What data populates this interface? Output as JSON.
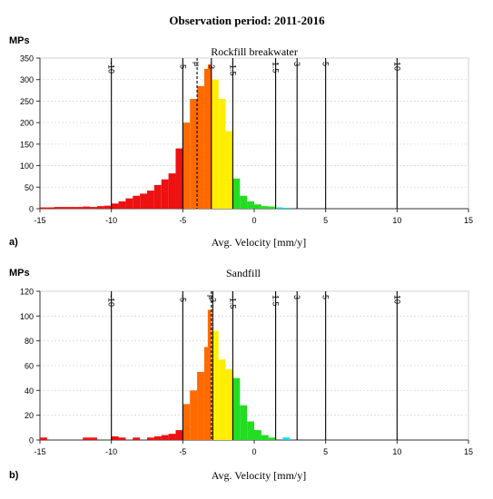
{
  "figure_title": "Observation period: 2011-2016",
  "chart_data": [
    {
      "type": "bar",
      "panel_label": "a)",
      "title": "Rockfill breakwater",
      "ylabel": "MPs",
      "xlabel": "Avg. Velocity [mm/y]",
      "xlim": [
        -15,
        15
      ],
      "ylim": [
        0,
        350
      ],
      "yticks": [
        0,
        50,
        100,
        150,
        200,
        250,
        300,
        350
      ],
      "xticks": [
        -15,
        -10,
        -5,
        0,
        5,
        10,
        15
      ],
      "bin_width": 0.5,
      "threshold_lines": [
        {
          "value": -10,
          "label": "-10",
          "style": "solid"
        },
        {
          "value": -5,
          "label": "-5",
          "style": "solid"
        },
        {
          "value": -4,
          "label": "μ",
          "style": "dashed"
        },
        {
          "value": -3,
          "label": "-3",
          "style": "solid"
        },
        {
          "value": -1.5,
          "label": "-1.5",
          "style": "solid"
        },
        {
          "value": 1.5,
          "label": "1.5",
          "style": "solid"
        },
        {
          "value": 3,
          "label": "3",
          "style": "solid"
        },
        {
          "value": 5,
          "label": "5",
          "style": "solid"
        },
        {
          "value": 10,
          "label": "10",
          "style": "solid"
        }
      ],
      "colors": {
        "lt_-5": "#ee1111",
        "-5_-3": "#ff6a00",
        "-3_-1.5": "#ffee00",
        "-1.5_1.5": "#22dd22",
        "1.5_3": "#00e0e0"
      },
      "bins": [
        {
          "x": -15,
          "y": 3
        },
        {
          "x": -14.5,
          "y": 3
        },
        {
          "x": -14,
          "y": 4
        },
        {
          "x": -13.5,
          "y": 4
        },
        {
          "x": -13,
          "y": 4
        },
        {
          "x": -12.5,
          "y": 4
        },
        {
          "x": -12,
          "y": 5
        },
        {
          "x": -11.5,
          "y": 4
        },
        {
          "x": -11,
          "y": 6
        },
        {
          "x": -10.5,
          "y": 7
        },
        {
          "x": -10,
          "y": 12
        },
        {
          "x": -9.5,
          "y": 17
        },
        {
          "x": -9,
          "y": 24
        },
        {
          "x": -8.5,
          "y": 30
        },
        {
          "x": -8,
          "y": 35
        },
        {
          "x": -7.5,
          "y": 42
        },
        {
          "x": -7,
          "y": 55
        },
        {
          "x": -6.5,
          "y": 68
        },
        {
          "x": -6,
          "y": 82
        },
        {
          "x": -5.5,
          "y": 140
        },
        {
          "x": -5,
          "y": 200
        },
        {
          "x": -4.5,
          "y": 255
        },
        {
          "x": -4,
          "y": 285
        },
        {
          "x": -3.5,
          "y": 325
        },
        {
          "x": -3.25,
          "y": 335
        },
        {
          "x": -3,
          "y": 300
        },
        {
          "x": -2.5,
          "y": 255
        },
        {
          "x": -2,
          "y": 180
        },
        {
          "x": -1.5,
          "y": 70
        },
        {
          "x": -1,
          "y": 30
        },
        {
          "x": -0.5,
          "y": 17
        },
        {
          "x": 0,
          "y": 10
        },
        {
          "x": 0.5,
          "y": 6
        },
        {
          "x": 1,
          "y": 5
        },
        {
          "x": 1.5,
          "y": 3
        },
        {
          "x": 2,
          "y": 2
        }
      ]
    },
    {
      "type": "bar",
      "panel_label": "b)",
      "title": "Sandfill",
      "ylabel": "MPs",
      "xlabel": "Avg. Velocity [mm/y]",
      "xlim": [
        -15,
        15
      ],
      "ylim": [
        0,
        120
      ],
      "yticks": [
        0,
        20,
        40,
        60,
        80,
        100,
        120
      ],
      "xticks": [
        -15,
        -10,
        -5,
        0,
        5,
        10,
        15
      ],
      "bin_width": 0.5,
      "threshold_lines": [
        {
          "value": -10,
          "label": "-10",
          "style": "solid"
        },
        {
          "value": -5,
          "label": "-5",
          "style": "solid"
        },
        {
          "value": -3,
          "label": "μ",
          "style": "dashed"
        },
        {
          "value": -2.9,
          "label": "-3",
          "style": "solid"
        },
        {
          "value": -1.5,
          "label": "-1.5",
          "style": "solid"
        },
        {
          "value": 1.5,
          "label": "1.5",
          "style": "solid"
        },
        {
          "value": 3,
          "label": "3",
          "style": "solid"
        },
        {
          "value": 5,
          "label": "5",
          "style": "solid"
        },
        {
          "value": 10,
          "label": "10",
          "style": "solid"
        }
      ],
      "colors": {
        "lt_-5": "#ee1111",
        "-5_-3": "#ff6a00",
        "-3_-1.5": "#ffee00",
        "-1.5_1.5": "#22dd22",
        "1.5_3": "#00e0e0"
      },
      "bins": [
        {
          "x": -15,
          "y": 2
        },
        {
          "x": -12,
          "y": 2
        },
        {
          "x": -11.5,
          "y": 2
        },
        {
          "x": -10,
          "y": 3
        },
        {
          "x": -9.5,
          "y": 2
        },
        {
          "x": -8.5,
          "y": 2
        },
        {
          "x": -7.5,
          "y": 2
        },
        {
          "x": -7,
          "y": 3
        },
        {
          "x": -6.5,
          "y": 4
        },
        {
          "x": -6,
          "y": 5
        },
        {
          "x": -5.5,
          "y": 8
        },
        {
          "x": -5,
          "y": 29
        },
        {
          "x": -4.5,
          "y": 40
        },
        {
          "x": -4,
          "y": 55
        },
        {
          "x": -3.5,
          "y": 75
        },
        {
          "x": -3.25,
          "y": 105
        },
        {
          "x": -3,
          "y": 88
        },
        {
          "x": -2.5,
          "y": 65
        },
        {
          "x": -2,
          "y": 57
        },
        {
          "x": -1.5,
          "y": 50
        },
        {
          "x": -1,
          "y": 28
        },
        {
          "x": -0.5,
          "y": 15
        },
        {
          "x": 0,
          "y": 8
        },
        {
          "x": 0.5,
          "y": 4
        },
        {
          "x": 1,
          "y": 2
        },
        {
          "x": 2,
          "y": 2
        }
      ]
    }
  ]
}
